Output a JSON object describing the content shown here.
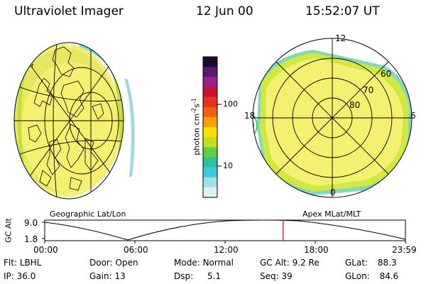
{
  "header": {
    "title": "Ultraviolet Imager",
    "date": "12 Jun 00",
    "time": "15:52:07 UT"
  },
  "colorbar": {
    "unit_prefix": "photon cm",
    "unit_exp1": "-2",
    "unit_mid": "s",
    "unit_exp2": "-1",
    "ticks": [
      "100",
      "10"
    ],
    "colors": [
      "#1a0a2e",
      "#5a1a6e",
      "#9a2090",
      "#cc1030",
      "#e83020",
      "#f06010",
      "#f8a000",
      "#ffe000",
      "#c0e020",
      "#60d040",
      "#30c0a0",
      "#40c8e0",
      "#a0e0e8",
      "#e0f0f0"
    ]
  },
  "maps": {
    "left_label": "Geographic Lat/Lon",
    "right_label": "Apex MLat/MLT",
    "mlt": {
      "top": "12",
      "left": "18",
      "right": "6",
      "bottom": "0"
    },
    "mlat": [
      "60",
      "70",
      "80"
    ]
  },
  "orbit": {
    "ylabel": "GC Alt",
    "ymax": "9.0",
    "ymin": "1.8",
    "xticks": [
      "00:00",
      "06:00",
      "12:00",
      "18:00",
      "23:59"
    ],
    "current_time_fraction": 0.661
  },
  "info": {
    "flt_label": "Flt:",
    "flt_value": "LBHL",
    "ip_label": "IP:",
    "ip_value": "36.0",
    "door_label": "Door:",
    "door_value": "Open",
    "gain_label": "Gain:",
    "gain_value": "13",
    "mode_label": "Mode:",
    "mode_value": "Normal",
    "dsp_label": "Dsp:",
    "dsp_value": "5.1",
    "gcalt_label": "GC Alt:",
    "gcalt_value": "9.2 Re",
    "seq_label": "Seq:",
    "seq_value": "39",
    "glat_label": "GLat:",
    "glat_value": "88.3",
    "glon_label": "GLon:",
    "glon_value": "84.6"
  }
}
